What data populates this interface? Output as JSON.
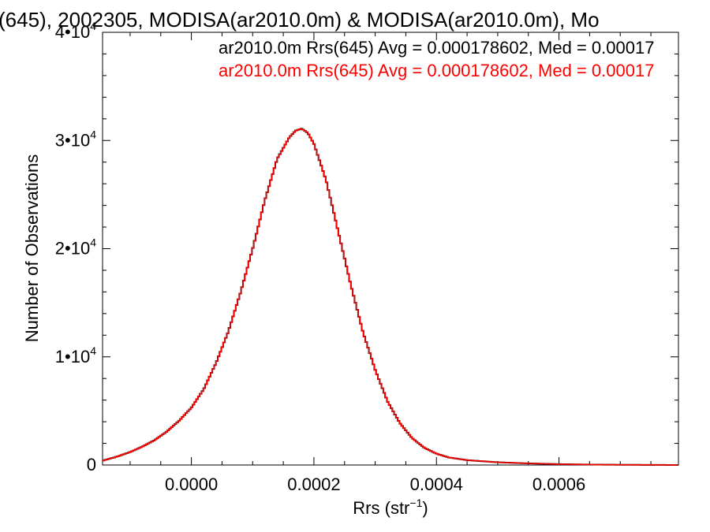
{
  "chart_data": {
    "type": "line",
    "title": "(645), 2002305, MODISA(ar2010.0m) & MODISA(ar2010.0m), Mo",
    "xlabel_main": "Rrs (str",
    "xlabel_sup": "−1",
    "xlabel_close": ")",
    "ylabel": "Number of Observations",
    "xlim": [
      -0.000145,
      0.000795
    ],
    "ylim": [
      0,
      40000
    ],
    "xticks": [
      {
        "value": 0.0,
        "label": "0.0000"
      },
      {
        "value": 0.0002,
        "label": "0.0002"
      },
      {
        "value": 0.0004,
        "label": "0.0004"
      },
      {
        "value": 0.0006,
        "label": "0.0006"
      }
    ],
    "yticks": [
      {
        "value": 0,
        "label": "0",
        "sup": ""
      },
      {
        "value": 10000,
        "label": "1•10",
        "sup": "4"
      },
      {
        "value": 20000,
        "label": "2•10",
        "sup": "4"
      },
      {
        "value": 30000,
        "label": "3•10",
        "sup": "4"
      },
      {
        "value": 40000,
        "label": "4•10",
        "sup": "4"
      }
    ],
    "series": [
      {
        "name": "ar2010.0m Rrs(645) Avg = 0.000178602, Med = 0.00017",
        "color": "#000000",
        "x": [
          -0.000145,
          -0.00012,
          -0.0001,
          -8e-05,
          -6e-05,
          -4e-05,
          -2e-05,
          0.0,
          2e-05,
          4e-05,
          6e-05,
          8e-05,
          0.0001,
          0.00012,
          0.00014,
          0.00016,
          0.00017,
          0.00018,
          0.00019,
          0.0002,
          0.00022,
          0.00024,
          0.00026,
          0.00028,
          0.0003,
          0.00032,
          0.00034,
          0.00036,
          0.00038,
          0.0004,
          0.00042,
          0.00045,
          0.0005,
          0.00055,
          0.0006,
          0.00065,
          0.0007,
          0.00075,
          0.000795
        ],
        "y": [
          400,
          800,
          1200,
          1700,
          2300,
          3100,
          4100,
          5300,
          7000,
          9400,
          12300,
          15900,
          20000,
          24500,
          28300,
          30300,
          30900,
          31100,
          30700,
          29700,
          26300,
          21500,
          16700,
          12300,
          8800,
          5900,
          3900,
          2500,
          1600,
          1050,
          700,
          450,
          250,
          150,
          80,
          40,
          20,
          10,
          0
        ]
      },
      {
        "name": "ar2010.0m Rrs(645) Avg = 0.000178602, Med = 0.00017",
        "color": "#ff0000",
        "x": [
          -0.000145,
          -0.00012,
          -0.0001,
          -8e-05,
          -6e-05,
          -4e-05,
          -2e-05,
          0.0,
          2e-05,
          4e-05,
          6e-05,
          8e-05,
          0.0001,
          0.00012,
          0.00014,
          0.00016,
          0.00017,
          0.00018,
          0.00019,
          0.0002,
          0.00022,
          0.00024,
          0.00026,
          0.00028,
          0.0003,
          0.00032,
          0.00034,
          0.00036,
          0.00038,
          0.0004,
          0.00042,
          0.00045,
          0.0005,
          0.00055,
          0.0006,
          0.00065,
          0.0007,
          0.00075,
          0.000795
        ],
        "y": [
          400,
          800,
          1200,
          1700,
          2300,
          3100,
          4100,
          5300,
          7000,
          9400,
          12300,
          15900,
          20000,
          24500,
          28300,
          30300,
          30900,
          31100,
          30700,
          29700,
          26300,
          21500,
          16700,
          12300,
          8800,
          5900,
          3900,
          2500,
          1600,
          1050,
          700,
          450,
          250,
          150,
          80,
          40,
          20,
          10,
          0
        ]
      }
    ],
    "legend_placement": "top-right",
    "grid": false
  }
}
